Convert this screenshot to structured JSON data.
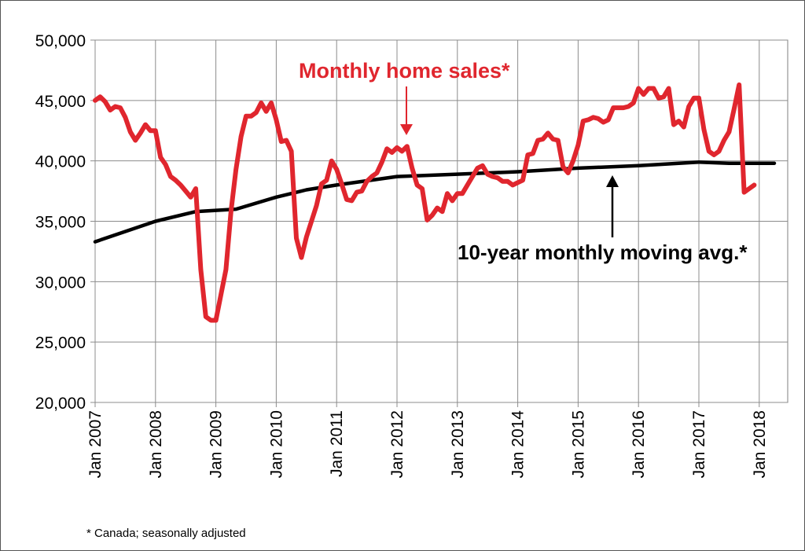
{
  "chart_data": {
    "type": "line",
    "title": "",
    "xlabel": "",
    "ylabel": "",
    "ylim": [
      20000,
      50000
    ],
    "yticks": [
      "20,000",
      "25,000",
      "30,000",
      "35,000",
      "40,000",
      "45,000",
      "50,000"
    ],
    "xticks": [
      "Jan 2007",
      "Jan 2008",
      "Jan 2009",
      "Jan 2010",
      "Jan 2011",
      "Jan 2012",
      "Jan 2013",
      "Jan 2014",
      "Jan 2015",
      "Jan 2016",
      "Jan 2017",
      "Jan 2018"
    ],
    "grid": true,
    "colors": {
      "sales": "#e0262e",
      "avg": "#000000"
    },
    "series": [
      {
        "name": "Monthly home sales*",
        "x_start": "2007-01",
        "values": [
          45000,
          45300,
          44900,
          44200,
          44500,
          44400,
          43600,
          42400,
          41700,
          42300,
          43000,
          42500,
          42500,
          40300,
          39700,
          38700,
          38400,
          38000,
          37500,
          37000,
          37700,
          31000,
          27100,
          26800,
          26800,
          28900,
          31000,
          35800,
          39300,
          42000,
          43700,
          43700,
          44000,
          44800,
          44100,
          44800,
          43400,
          41600,
          41700,
          40800,
          33600,
          32000,
          33700,
          35000,
          36300,
          38100,
          38400,
          40000,
          39300,
          38100,
          36800,
          36700,
          37400,
          37500,
          38300,
          38700,
          39000,
          39900,
          41000,
          40700,
          41100,
          40800,
          41200,
          39400,
          38000,
          37700,
          35100,
          35500,
          36100,
          35800,
          37300,
          36700,
          37300,
          37300,
          38000,
          38700,
          39400,
          39600,
          38900,
          38700,
          38600,
          38300,
          38300,
          38000,
          38200,
          38400,
          40500,
          40600,
          41700,
          41800,
          42300,
          41800,
          41700,
          39500,
          39000,
          40000,
          41300,
          43300,
          43400,
          43600,
          43500,
          43200,
          43400,
          44400,
          44400,
          44400,
          44500,
          44800,
          46000,
          45500,
          46000,
          46000,
          45200,
          45300,
          46000,
          43000,
          43300,
          42800,
          44500,
          45200,
          45200,
          42600,
          40800,
          40500,
          40800,
          41700,
          42400,
          44300,
          46300,
          37400,
          37700,
          38000
        ]
      },
      {
        "name": "10-year monthly moving avg.*",
        "points": [
          [
            0,
            33300
          ],
          [
            12,
            35000
          ],
          [
            20,
            35800
          ],
          [
            28,
            36000
          ],
          [
            36,
            37000
          ],
          [
            42,
            37600
          ],
          [
            48,
            38000
          ],
          [
            60,
            38700
          ],
          [
            72,
            38900
          ],
          [
            84,
            39100
          ],
          [
            96,
            39400
          ],
          [
            108,
            39600
          ],
          [
            120,
            39900
          ],
          [
            126,
            39800
          ],
          [
            135,
            39800
          ]
        ]
      }
    ],
    "annotations": {
      "sales_label": "Monthly home sales*",
      "avg_label": "10-year monthly moving avg.*",
      "footnote": "* Canada; seasonally adjusted"
    }
  }
}
